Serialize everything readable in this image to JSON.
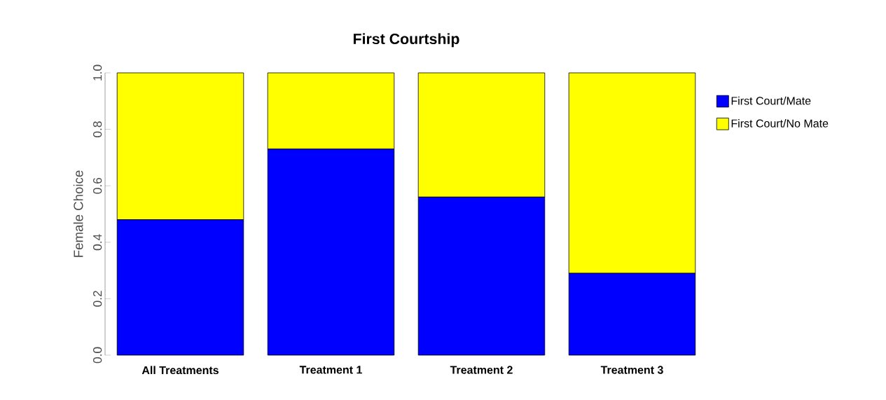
{
  "chart_data": {
    "type": "bar",
    "title": "First Courtship",
    "ylabel": "Female Choice",
    "categories": [
      "All Treatments",
      "Treatment 1",
      "Treatment 2",
      "Treatment 3"
    ],
    "series": [
      {
        "name": "First Court/Mate",
        "color": "#0000ff",
        "values": [
          0.48,
          0.73,
          0.56,
          0.29
        ]
      },
      {
        "name": "First Court/No Mate",
        "color": "#ffff00",
        "values": [
          0.52,
          0.27,
          0.44,
          0.71
        ]
      }
    ],
    "stacked": true,
    "ylim": [
      0,
      1.0
    ],
    "yticks": [
      {
        "value": 0,
        "label": "0.0"
      },
      {
        "value": 0.2,
        "label": "0.2"
      },
      {
        "value": 0.4,
        "label": "0.4"
      },
      {
        "value": 0.6,
        "label": "0.6"
      },
      {
        "value": 0.8,
        "label": "0.8"
      },
      {
        "value": 1.0,
        "label": "1.0"
      }
    ],
    "legend": "right",
    "grid": false
  }
}
